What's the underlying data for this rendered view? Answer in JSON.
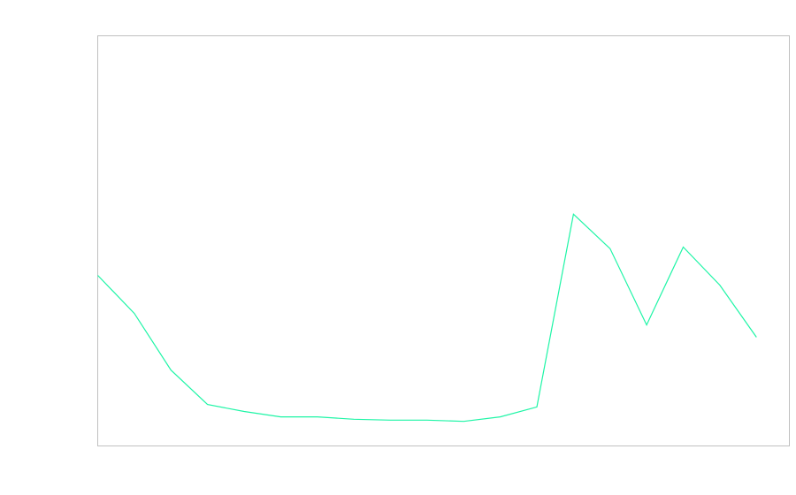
{
  "chart_data": {
    "type": "line",
    "title": "",
    "xlabel": "",
    "ylabel": "",
    "x": [
      0,
      1,
      2,
      3,
      4,
      5,
      6,
      7,
      8,
      9,
      10,
      11,
      12,
      13,
      14,
      15,
      16,
      17,
      18
    ],
    "series": [
      {
        "color": "#1ef5a6",
        "values": [
          41.6,
          32.3,
          18.5,
          10.1,
          8.4,
          7.1,
          7.1,
          6.5,
          6.3,
          6.3,
          6.0,
          7.1,
          9.5,
          56.5,
          48.1,
          29.5,
          48.5,
          39.2,
          26.5
        ]
      }
    ],
    "xlim": [
      0,
      18.9
    ],
    "ylim": [
      0,
      100
    ],
    "grid": false,
    "frame_color": "#c0c0c0"
  }
}
